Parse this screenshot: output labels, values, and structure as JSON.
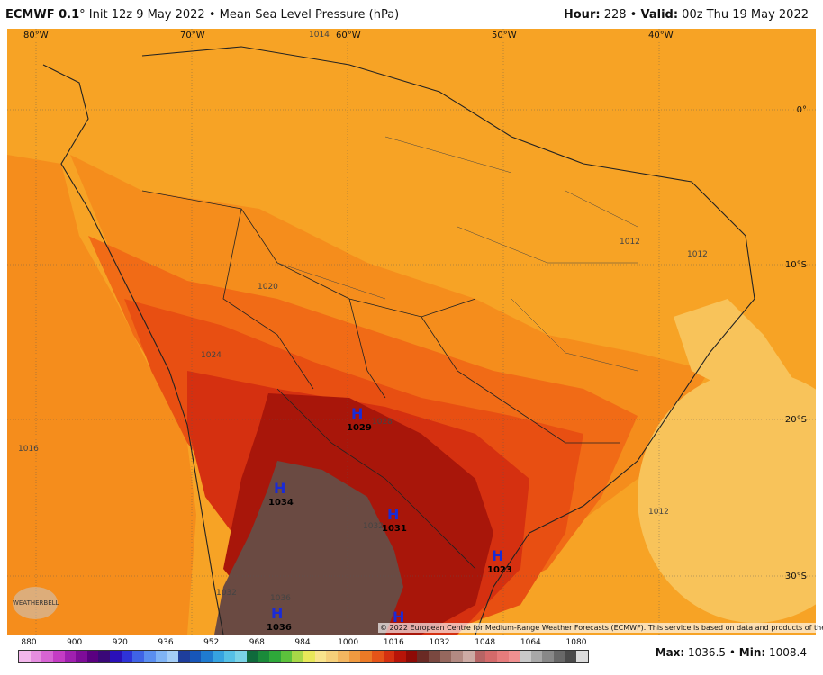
{
  "header": {
    "model": "ECMWF 0.1",
    "degree": "°",
    "run": "Init 12z 9 May 2022",
    "bullet": "•",
    "field": "Mean Sea Level Pressure (hPa)",
    "hour_label": "Hour:",
    "hour": "228",
    "valid_label": "Valid:",
    "valid": "00z Thu 19 May 2022"
  },
  "map": {
    "lon_labels": [
      "80°W",
      "70°W",
      "60°W",
      "50°W",
      "40°W"
    ],
    "lat_labels": [
      "0°",
      "10°S",
      "20°S",
      "30°S"
    ],
    "highs": [
      {
        "mark": "H",
        "value": "1029"
      },
      {
        "mark": "H",
        "value": "1034"
      },
      {
        "mark": "H",
        "value": "1031"
      },
      {
        "mark": "H",
        "value": "1023"
      },
      {
        "mark": "H",
        "value": "1036"
      },
      {
        "mark": "H",
        "value": ""
      }
    ],
    "isobar_labels": [
      "1012",
      "1012",
      "1020",
      "1012",
      "1016",
      "1028",
      "1032",
      "1032",
      "1036",
      "1024",
      "1014"
    ],
    "copyright": "© 2022 European Centre for Medium-Range Weather Forecasts (ECMWF). This service is based on data and products of the ECMWF.",
    "logo_text": "WEATHERBELL"
  },
  "colorbar": {
    "tick_labels": [
      "880",
      "900",
      "920",
      "936",
      "952",
      "968",
      "984",
      "1000",
      "1016",
      "1032",
      "1048",
      "1064",
      "1080"
    ],
    "colors": [
      "#f3b7ec",
      "#e58ee0",
      "#d764d4",
      "#c43cc4",
      "#a020b0",
      "#7e0c98",
      "#5a0080",
      "#3a0878",
      "#2a10b8",
      "#2e33d8",
      "#3f63e6",
      "#5a8ef0",
      "#7fb3f5",
      "#a3cdf7",
      "#1e3e9c",
      "#1756b8",
      "#1f7bd0",
      "#36a3e0",
      "#55c0e5",
      "#7ad3e6",
      "#0f6a3c",
      "#1a8a3a",
      "#2ea83a",
      "#5cc23c",
      "#a7d848",
      "#e8e85a",
      "#f9e48c",
      "#f6d07a",
      "#f3b660",
      "#f09a40",
      "#ec7a26",
      "#e65418",
      "#d53010",
      "#b81408",
      "#8e0a06",
      "#6a2a24",
      "#7a4840",
      "#96685e",
      "#b38a82",
      "#cdaba4",
      "#b66464",
      "#d46a6a",
      "#e67c7c",
      "#f09090",
      "#c8c8c8",
      "#a8a8a8",
      "#888888",
      "#686868",
      "#4a4a4a",
      "#dcdcdc"
    ]
  },
  "stats": {
    "max_label": "Max:",
    "max": "1036.5",
    "sep": "•",
    "min_label": "Min:",
    "min": "1008.4"
  },
  "colors": {
    "p1012": "#f7a325",
    "p1016": "#f58d1c",
    "p1020": "#f16b16",
    "p1024": "#e84f12",
    "p1028": "#d53010",
    "p1032": "#a8160a",
    "p1036": "#6a4a42",
    "p1008": "#f8c35a"
  }
}
